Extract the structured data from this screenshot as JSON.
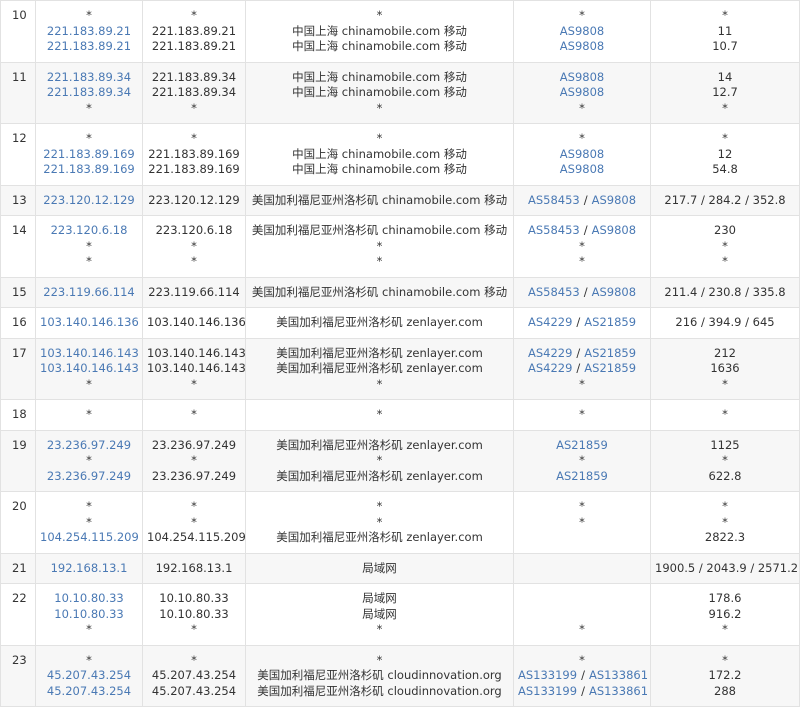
{
  "rows": [
    {
      "hop": "10",
      "lines": [
        [
          "*",
          "*",
          "*",
          "*",
          "*"
        ],
        [
          "221.183.89.21",
          "221.183.89.21",
          "中国上海 chinamobile.com 移动",
          [
            "AS9808"
          ],
          "11"
        ],
        [
          "221.183.89.21",
          "221.183.89.21",
          "中国上海 chinamobile.com 移动",
          [
            "AS9808"
          ],
          "10.7"
        ]
      ]
    },
    {
      "hop": "11",
      "lines": [
        [
          "221.183.89.34",
          "221.183.89.34",
          "中国上海 chinamobile.com 移动",
          [
            "AS9808"
          ],
          "14"
        ],
        [
          "221.183.89.34",
          "221.183.89.34",
          "中国上海 chinamobile.com 移动",
          [
            "AS9808"
          ],
          "12.7"
        ],
        [
          "*",
          "*",
          "*",
          "*",
          "*"
        ]
      ]
    },
    {
      "hop": "12",
      "lines": [
        [
          "*",
          "*",
          "*",
          "*",
          "*"
        ],
        [
          "221.183.89.169",
          "221.183.89.169",
          "中国上海 chinamobile.com 移动",
          [
            "AS9808"
          ],
          "12"
        ],
        [
          "221.183.89.169",
          "221.183.89.169",
          "中国上海 chinamobile.com 移动",
          [
            "AS9808"
          ],
          "54.8"
        ]
      ]
    },
    {
      "hop": "13",
      "lines": [
        [
          "223.120.12.129",
          "223.120.12.129",
          "美国加利福尼亚州洛杉矶 chinamobile.com 移动",
          [
            "AS58453",
            "/",
            "AS9808"
          ],
          "217.7 / 284.2 / 352.8"
        ]
      ]
    },
    {
      "hop": "14",
      "lines": [
        [
          "223.120.6.18",
          "223.120.6.18",
          "美国加利福尼亚州洛杉矶 chinamobile.com 移动",
          [
            "AS58453",
            "/",
            "AS9808"
          ],
          "230"
        ],
        [
          "*",
          "*",
          "*",
          "*",
          "*"
        ],
        [
          "*",
          "*",
          "*",
          "*",
          "*"
        ]
      ]
    },
    {
      "hop": "15",
      "lines": [
        [
          "223.119.66.114",
          "223.119.66.114",
          "美国加利福尼亚州洛杉矶 chinamobile.com 移动",
          [
            "AS58453",
            "/",
            "AS9808"
          ],
          "211.4 / 230.8 / 335.8"
        ]
      ]
    },
    {
      "hop": "16",
      "lines": [
        [
          "103.140.146.136",
          "103.140.146.136",
          "美国加利福尼亚州洛杉矶 zenlayer.com",
          [
            "AS4229",
            "/",
            "AS21859"
          ],
          "216 / 394.9 / 645"
        ]
      ]
    },
    {
      "hop": "17",
      "lines": [
        [
          "103.140.146.143",
          "103.140.146.143",
          "美国加利福尼亚州洛杉矶 zenlayer.com",
          [
            "AS4229",
            "/",
            "AS21859"
          ],
          "212"
        ],
        [
          "103.140.146.143",
          "103.140.146.143",
          "美国加利福尼亚州洛杉矶 zenlayer.com",
          [
            "AS4229",
            "/",
            "AS21859"
          ],
          "1636"
        ],
        [
          "*",
          "*",
          "*",
          "*",
          "*"
        ]
      ]
    },
    {
      "hop": "18",
      "lines": [
        [
          "*",
          "*",
          "*",
          "*",
          "*"
        ]
      ]
    },
    {
      "hop": "19",
      "lines": [
        [
          "23.236.97.249",
          "23.236.97.249",
          "美国加利福尼亚州洛杉矶 zenlayer.com",
          [
            "AS21859"
          ],
          "1125"
        ],
        [
          "*",
          "*",
          "*",
          "*",
          "*"
        ],
        [
          "23.236.97.249",
          "23.236.97.249",
          "美国加利福尼亚州洛杉矶 zenlayer.com",
          [
            "AS21859"
          ],
          "622.8"
        ]
      ]
    },
    {
      "hop": "20",
      "lines": [
        [
          "*",
          "*",
          "*",
          "*",
          "*"
        ],
        [
          "*",
          "*",
          "*",
          "*",
          "*"
        ],
        [
          "104.254.115.209",
          "104.254.115.209",
          "美国加利福尼亚州洛杉矶 zenlayer.com",
          null,
          "2822.3"
        ]
      ]
    },
    {
      "hop": "21",
      "lines": [
        [
          "192.168.13.1",
          "192.168.13.1",
          "局域网",
          null,
          "1900.5 / 2043.9 / 2571.2"
        ]
      ]
    },
    {
      "hop": "22",
      "lines": [
        [
          "10.10.80.33",
          "10.10.80.33",
          "局域网",
          null,
          "178.6"
        ],
        [
          "10.10.80.33",
          "10.10.80.33",
          "局域网",
          null,
          "916.2"
        ],
        [
          "*",
          "*",
          "*",
          "*",
          "*"
        ]
      ]
    },
    {
      "hop": "23",
      "lines": [
        [
          "*",
          "*",
          "*",
          "*",
          "*"
        ],
        [
          "45.207.43.254",
          "45.207.43.254",
          "美国加利福尼亚州洛杉矶 cloudinnovation.org",
          [
            "AS133199",
            "/",
            "AS133861"
          ],
          "172.2"
        ],
        [
          "45.207.43.254",
          "45.207.43.254",
          "美国加利福尼亚州洛杉矶 cloudinnovation.org",
          [
            "AS133199",
            "/",
            "AS133861"
          ],
          "288"
        ]
      ]
    }
  ]
}
